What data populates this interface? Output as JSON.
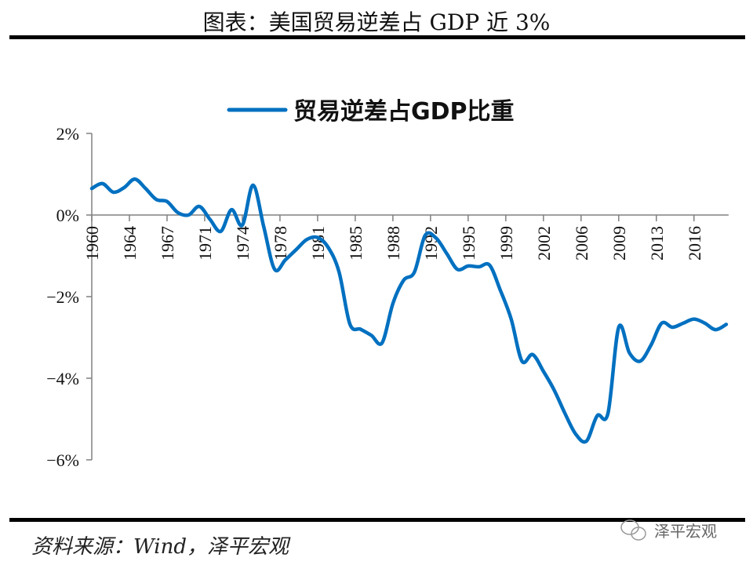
{
  "header": {
    "title": "图表：美国贸易逆差占 GDP 近 3%"
  },
  "footer": {
    "source": "资料来源：Wind，泽平宏观",
    "watermark": "泽平宏观"
  },
  "colors": {
    "line": "#0070C0",
    "axis": "#808080",
    "rule": "#000000"
  },
  "chart_data": {
    "type": "line",
    "title": "",
    "xlabel": "",
    "ylabel": "",
    "ylim": [
      -6,
      2
    ],
    "y_ticks": [
      2,
      0,
      -2,
      -4,
      -6
    ],
    "y_tick_labels": [
      "2%",
      "0%",
      "-2%",
      "-4%",
      "-6%"
    ],
    "x_tick_labels": [
      "1960",
      "1964",
      "1967",
      "1971",
      "1974",
      "1978",
      "1981",
      "1985",
      "1988",
      "1992",
      "1995",
      "1999",
      "2002",
      "2006",
      "2009",
      "2013",
      "2016"
    ],
    "grid": false,
    "legend_position": "top-center",
    "x": [
      1960,
      1961,
      1962,
      1963,
      1964,
      1965,
      1966,
      1967,
      1968,
      1969,
      1970,
      1971,
      1972,
      1973,
      1974,
      1975,
      1976,
      1977,
      1978,
      1979,
      1980,
      1981,
      1982,
      1983,
      1984,
      1985,
      1986,
      1987,
      1988,
      1989,
      1990,
      1991,
      1992,
      1993,
      1994,
      1995,
      1996,
      1997,
      1998,
      1999,
      2000,
      2001,
      2002,
      2003,
      2004,
      2005,
      2006,
      2007,
      2008,
      2009,
      2010,
      2011,
      2012,
      2013,
      2014,
      2015,
      2016,
      2017,
      2018,
      2019
    ],
    "series": [
      {
        "name": "贸易逆差占GDP比重",
        "values": [
          0.65,
          0.77,
          0.56,
          0.67,
          0.88,
          0.65,
          0.38,
          0.33,
          0.06,
          0.0,
          0.21,
          -0.11,
          -0.4,
          0.13,
          -0.25,
          0.73,
          -0.3,
          -1.33,
          -1.1,
          -0.85,
          -0.6,
          -0.55,
          -0.8,
          -1.4,
          -2.67,
          -2.8,
          -2.95,
          -3.13,
          -2.17,
          -1.6,
          -1.4,
          -0.5,
          -0.56,
          -0.94,
          -1.33,
          -1.25,
          -1.27,
          -1.23,
          -1.85,
          -2.55,
          -3.58,
          -3.42,
          -3.83,
          -4.29,
          -4.86,
          -5.37,
          -5.54,
          -4.92,
          -4.86,
          -2.75,
          -3.38,
          -3.58,
          -3.19,
          -2.65,
          -2.75,
          -2.65,
          -2.55,
          -2.65,
          -2.81,
          -2.68
        ]
      }
    ]
  }
}
